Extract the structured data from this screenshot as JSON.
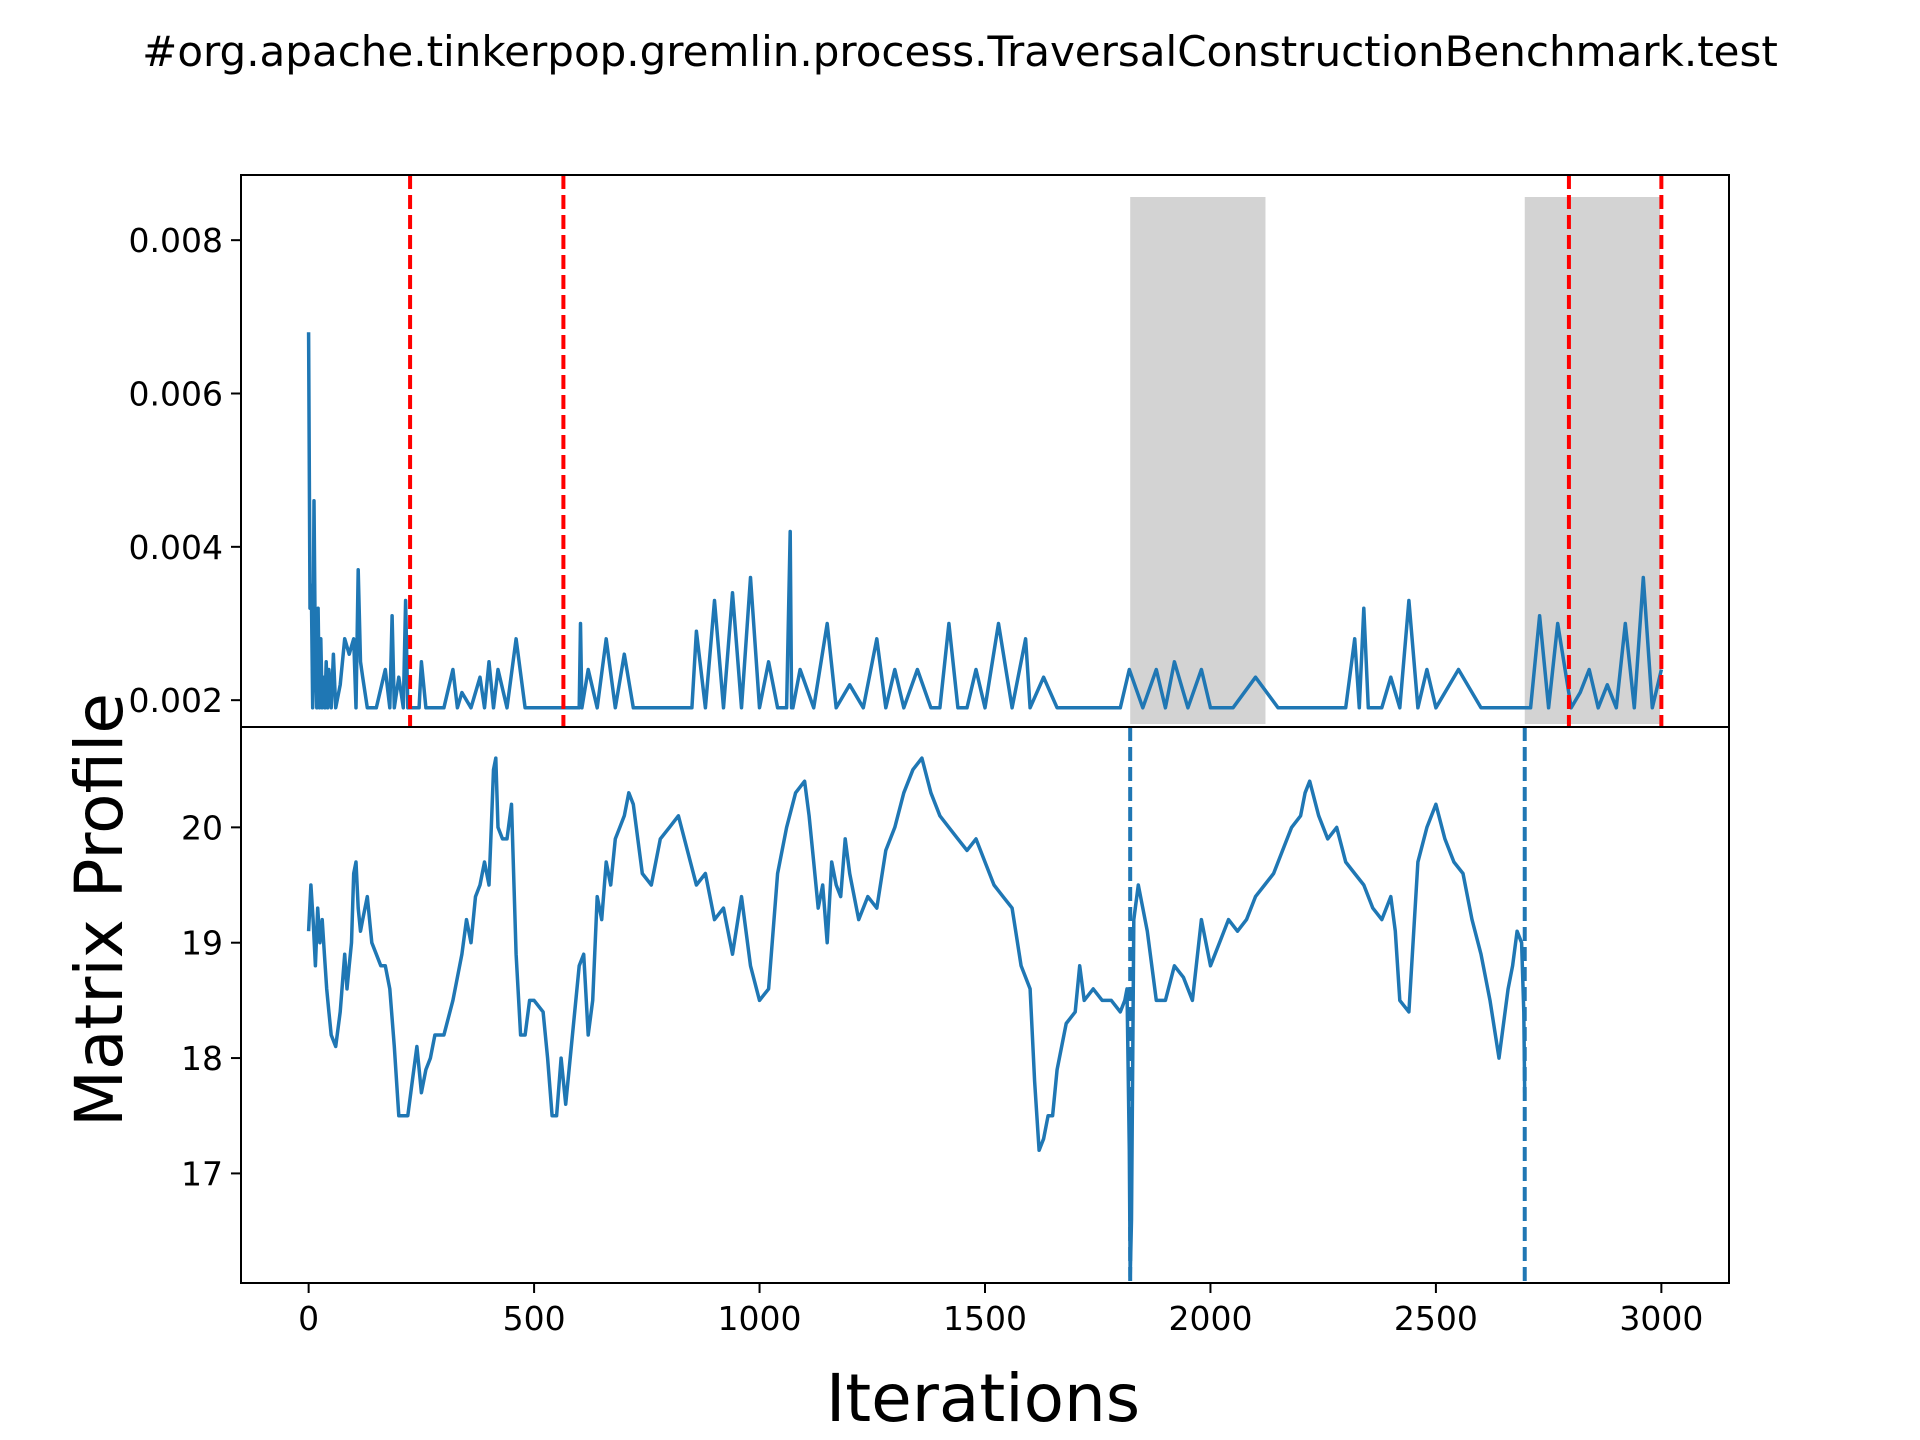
{
  "chart_data": {
    "type": "line",
    "title": "#org.apache.tinkerpop.gremlin.process.TraversalConstructionBenchmark.test",
    "xlabel": "Iterations",
    "ylabel": "Matrix Profile",
    "xlim": [
      -150,
      3150
    ],
    "xticks": [
      0,
      500,
      1000,
      1500,
      2000,
      2500,
      3000
    ],
    "xtick_labels": [
      "0",
      "500",
      "1000",
      "1500",
      "2000",
      "2500",
      "3000"
    ],
    "grid": false,
    "panels": [
      {
        "name": "top",
        "ylim": [
          0.00165,
          0.00885
        ],
        "yticks": [
          0.002,
          0.004,
          0.006,
          0.008
        ],
        "ytick_labels": [
          "0.002",
          "0.004",
          "0.006",
          "0.008"
        ],
        "line_color": "#1f77b4",
        "series_x": [
          0,
          3,
          6,
          9,
          12,
          15,
          18,
          21,
          24,
          27,
          30,
          33,
          36,
          39,
          42,
          45,
          50,
          55,
          60,
          70,
          80,
          90,
          100,
          105,
          110,
          115,
          120,
          130,
          150,
          170,
          180,
          185,
          190,
          200,
          210,
          215,
          220,
          230,
          245,
          250,
          260,
          270,
          300,
          320,
          330,
          340,
          360,
          380,
          390,
          400,
          410,
          420,
          440,
          460,
          480,
          500,
          520,
          540,
          560,
          580,
          600,
          603,
          606,
          620,
          640,
          660,
          680,
          700,
          720,
          760,
          800,
          850,
          860,
          880,
          900,
          920,
          940,
          960,
          980,
          1000,
          1020,
          1040,
          1060,
          1068,
          1071,
          1074,
          1090,
          1120,
          1150,
          1170,
          1200,
          1230,
          1260,
          1280,
          1300,
          1320,
          1350,
          1380,
          1400,
          1420,
          1440,
          1460,
          1480,
          1500,
          1530,
          1560,
          1590,
          1600,
          1630,
          1660,
          1700,
          1750,
          1800,
          1820,
          1850,
          1880,
          1900,
          1920,
          1950,
          1980,
          2000,
          2050,
          2100,
          2150,
          2200,
          2250,
          2300,
          2320,
          2330,
          2340,
          2350,
          2380,
          2400,
          2420,
          2440,
          2460,
          2480,
          2500,
          2550,
          2600,
          2650,
          2700,
          2710,
          2730,
          2750,
          2770,
          2800,
          2820,
          2840,
          2860,
          2880,
          2900,
          2920,
          2940,
          2960,
          2980,
          3000
        ],
        "series_y": [
          0.0068,
          0.0032,
          0.0035,
          0.0019,
          0.0046,
          0.0025,
          0.0019,
          0.0032,
          0.0019,
          0.0028,
          0.0019,
          0.0023,
          0.0019,
          0.0025,
          0.0019,
          0.0024,
          0.0019,
          0.0026,
          0.0019,
          0.0022,
          0.0028,
          0.0026,
          0.0028,
          0.0019,
          0.0037,
          0.0025,
          0.0023,
          0.0019,
          0.0019,
          0.0024,
          0.0019,
          0.0031,
          0.0019,
          0.0023,
          0.0019,
          0.0033,
          0.0019,
          0.0019,
          0.0019,
          0.0025,
          0.0019,
          0.0019,
          0.0019,
          0.0024,
          0.0019,
          0.0021,
          0.0019,
          0.0023,
          0.0019,
          0.0025,
          0.0019,
          0.0024,
          0.0019,
          0.0028,
          0.0019,
          0.0019,
          0.0019,
          0.0019,
          0.0019,
          0.0019,
          0.0019,
          0.003,
          0.0019,
          0.0024,
          0.0019,
          0.0028,
          0.0019,
          0.0026,
          0.0019,
          0.0019,
          0.0019,
          0.0019,
          0.0029,
          0.0019,
          0.0033,
          0.0019,
          0.0034,
          0.0019,
          0.0036,
          0.0019,
          0.0025,
          0.0019,
          0.0019,
          0.0042,
          0.0019,
          0.0019,
          0.0024,
          0.0019,
          0.003,
          0.0019,
          0.0022,
          0.0019,
          0.0028,
          0.0019,
          0.0024,
          0.0019,
          0.0024,
          0.0019,
          0.0019,
          0.003,
          0.0019,
          0.0019,
          0.0024,
          0.0019,
          0.003,
          0.0019,
          0.0028,
          0.0019,
          0.0023,
          0.0019,
          0.0019,
          0.0019,
          0.0019,
          0.0024,
          0.0019,
          0.0024,
          0.0019,
          0.0025,
          0.0019,
          0.0024,
          0.0019,
          0.0019,
          0.0023,
          0.0019,
          0.0019,
          0.0019,
          0.0019,
          0.0028,
          0.0019,
          0.0032,
          0.0019,
          0.0019,
          0.0023,
          0.0019,
          0.0033,
          0.0019,
          0.0024,
          0.0019,
          0.0024,
          0.0019,
          0.0019,
          0.0019,
          0.0019,
          0.0031,
          0.0019,
          0.003,
          0.0019,
          0.0021,
          0.0024,
          0.0019,
          0.0022,
          0.0019,
          0.003,
          0.0019,
          0.0036,
          0.0019,
          0.0024,
          0.0019,
          0.0019,
          0.0019
        ],
        "vlines": [
          {
            "x": 225,
            "color": "#ff0000",
            "style": "dashed"
          },
          {
            "x": 565,
            "color": "#ff0000",
            "style": "dashed"
          },
          {
            "x": 2795,
            "color": "#ff0000",
            "style": "dashed"
          },
          {
            "x": 3000,
            "color": "#ff0000",
            "style": "dashed"
          }
        ],
        "shaded_regions": [
          {
            "x_start": 1822,
            "x_end": 2122,
            "color": "#d3d3d3"
          },
          {
            "x_start": 2697,
            "x_end": 2997,
            "color": "#d3d3d3"
          }
        ]
      },
      {
        "name": "bottom",
        "ylim": [
          16.05,
          20.87
        ],
        "yticks": [
          17,
          18,
          19,
          20
        ],
        "ytick_labels": [
          "17",
          "18",
          "19",
          "20"
        ],
        "line_color": "#1f77b4",
        "series_x": [
          0,
          5,
          10,
          15,
          20,
          25,
          30,
          35,
          40,
          45,
          50,
          60,
          70,
          80,
          85,
          90,
          95,
          100,
          105,
          110,
          115,
          120,
          130,
          140,
          150,
          160,
          170,
          180,
          190,
          200,
          210,
          220,
          230,
          240,
          250,
          260,
          270,
          280,
          300,
          320,
          330,
          340,
          350,
          360,
          370,
          380,
          390,
          400,
          405,
          410,
          415,
          420,
          430,
          440,
          450,
          460,
          470,
          480,
          490,
          500,
          520,
          530,
          540,
          550,
          560,
          570,
          580,
          590,
          600,
          610,
          620,
          630,
          640,
          650,
          660,
          670,
          680,
          690,
          700,
          710,
          720,
          740,
          760,
          780,
          800,
          820,
          840,
          860,
          880,
          900,
          920,
          940,
          960,
          980,
          1000,
          1020,
          1040,
          1060,
          1080,
          1100,
          1110,
          1120,
          1130,
          1140,
          1150,
          1160,
          1170,
          1180,
          1190,
          1200,
          1220,
          1240,
          1260,
          1280,
          1300,
          1320,
          1340,
          1360,
          1380,
          1400,
          1420,
          1440,
          1460,
          1480,
          1500,
          1520,
          1540,
          1560,
          1580,
          1600,
          1610,
          1620,
          1630,
          1640,
          1650,
          1660,
          1680,
          1700,
          1710,
          1720,
          1740,
          1760,
          1780,
          1800,
          1810,
          1815,
          1820,
          1822,
          1825,
          1830,
          1840,
          1850,
          1860,
          1880,
          1900,
          1920,
          1940,
          1960,
          1980,
          2000,
          2020,
          2040,
          2060,
          2080,
          2100,
          2120,
          2140,
          2160,
          2180,
          2200,
          2210,
          2220,
          2240,
          2260,
          2280,
          2300,
          2320,
          2340,
          2360,
          2380,
          2400,
          2410,
          2420,
          2440,
          2460,
          2480,
          2500,
          2520,
          2540,
          2560,
          2580,
          2600,
          2620,
          2640,
          2660,
          2670,
          2680,
          2690,
          2695,
          2697
        ],
        "series_y": [
          19.1,
          19.5,
          19.2,
          18.8,
          19.3,
          19.0,
          19.2,
          18.9,
          18.6,
          18.4,
          18.2,
          18.1,
          18.4,
          18.9,
          18.6,
          18.8,
          19.0,
          19.6,
          19.7,
          19.3,
          19.1,
          19.2,
          19.4,
          19.0,
          18.9,
          18.8,
          18.8,
          18.6,
          18.1,
          17.5,
          17.5,
          17.5,
          17.8,
          18.1,
          17.7,
          17.9,
          18.0,
          18.2,
          18.2,
          18.5,
          18.7,
          18.9,
          19.2,
          19.0,
          19.4,
          19.5,
          19.7,
          19.5,
          20.0,
          20.5,
          20.6,
          20.0,
          19.9,
          19.9,
          20.2,
          18.9,
          18.2,
          18.2,
          18.5,
          18.5,
          18.4,
          18.0,
          17.5,
          17.5,
          18.0,
          17.6,
          18.0,
          18.4,
          18.8,
          18.9,
          18.2,
          18.5,
          19.4,
          19.2,
          19.7,
          19.5,
          19.9,
          20.0,
          20.1,
          20.3,
          20.2,
          19.6,
          19.5,
          19.9,
          20.0,
          20.1,
          19.8,
          19.5,
          19.6,
          19.2,
          19.3,
          18.9,
          19.4,
          18.8,
          18.5,
          18.6,
          19.6,
          20.0,
          20.3,
          20.4,
          20.1,
          19.7,
          19.3,
          19.5,
          19.0,
          19.7,
          19.5,
          19.4,
          19.9,
          19.6,
          19.2,
          19.4,
          19.3,
          19.8,
          20.0,
          20.3,
          20.5,
          20.6,
          20.3,
          20.1,
          20.0,
          19.9,
          19.8,
          19.9,
          19.7,
          19.5,
          19.4,
          19.3,
          18.8,
          18.6,
          17.8,
          17.2,
          17.3,
          17.5,
          17.5,
          17.9,
          18.3,
          18.4,
          18.8,
          18.5,
          18.6,
          18.5,
          18.5,
          18.4,
          18.5,
          18.6,
          17.2,
          16.1,
          16.6,
          19.2,
          19.5,
          19.3,
          19.1,
          18.5,
          18.5,
          18.8,
          18.7,
          18.5,
          19.2,
          18.8,
          19.0,
          19.2,
          19.1,
          19.2,
          19.4,
          19.5,
          19.6,
          19.8,
          20.0,
          20.1,
          20.3,
          20.4,
          20.1,
          19.9,
          20.0,
          19.7,
          19.6,
          19.5,
          19.3,
          19.2,
          19.4,
          19.1,
          18.5,
          18.4,
          19.7,
          20.0,
          20.2,
          19.9,
          19.7,
          19.6,
          19.2,
          18.9,
          18.5,
          18.0,
          18.6,
          18.8,
          19.1,
          19.0,
          18.4,
          17.7,
          17.1,
          16.6,
          16.2,
          16.1
        ],
        "vlines": [
          {
            "x": 1822,
            "color": "#1f77b4",
            "style": "dashed"
          },
          {
            "x": 2697,
            "color": "#1f77b4",
            "style": "dashed"
          }
        ]
      }
    ]
  }
}
